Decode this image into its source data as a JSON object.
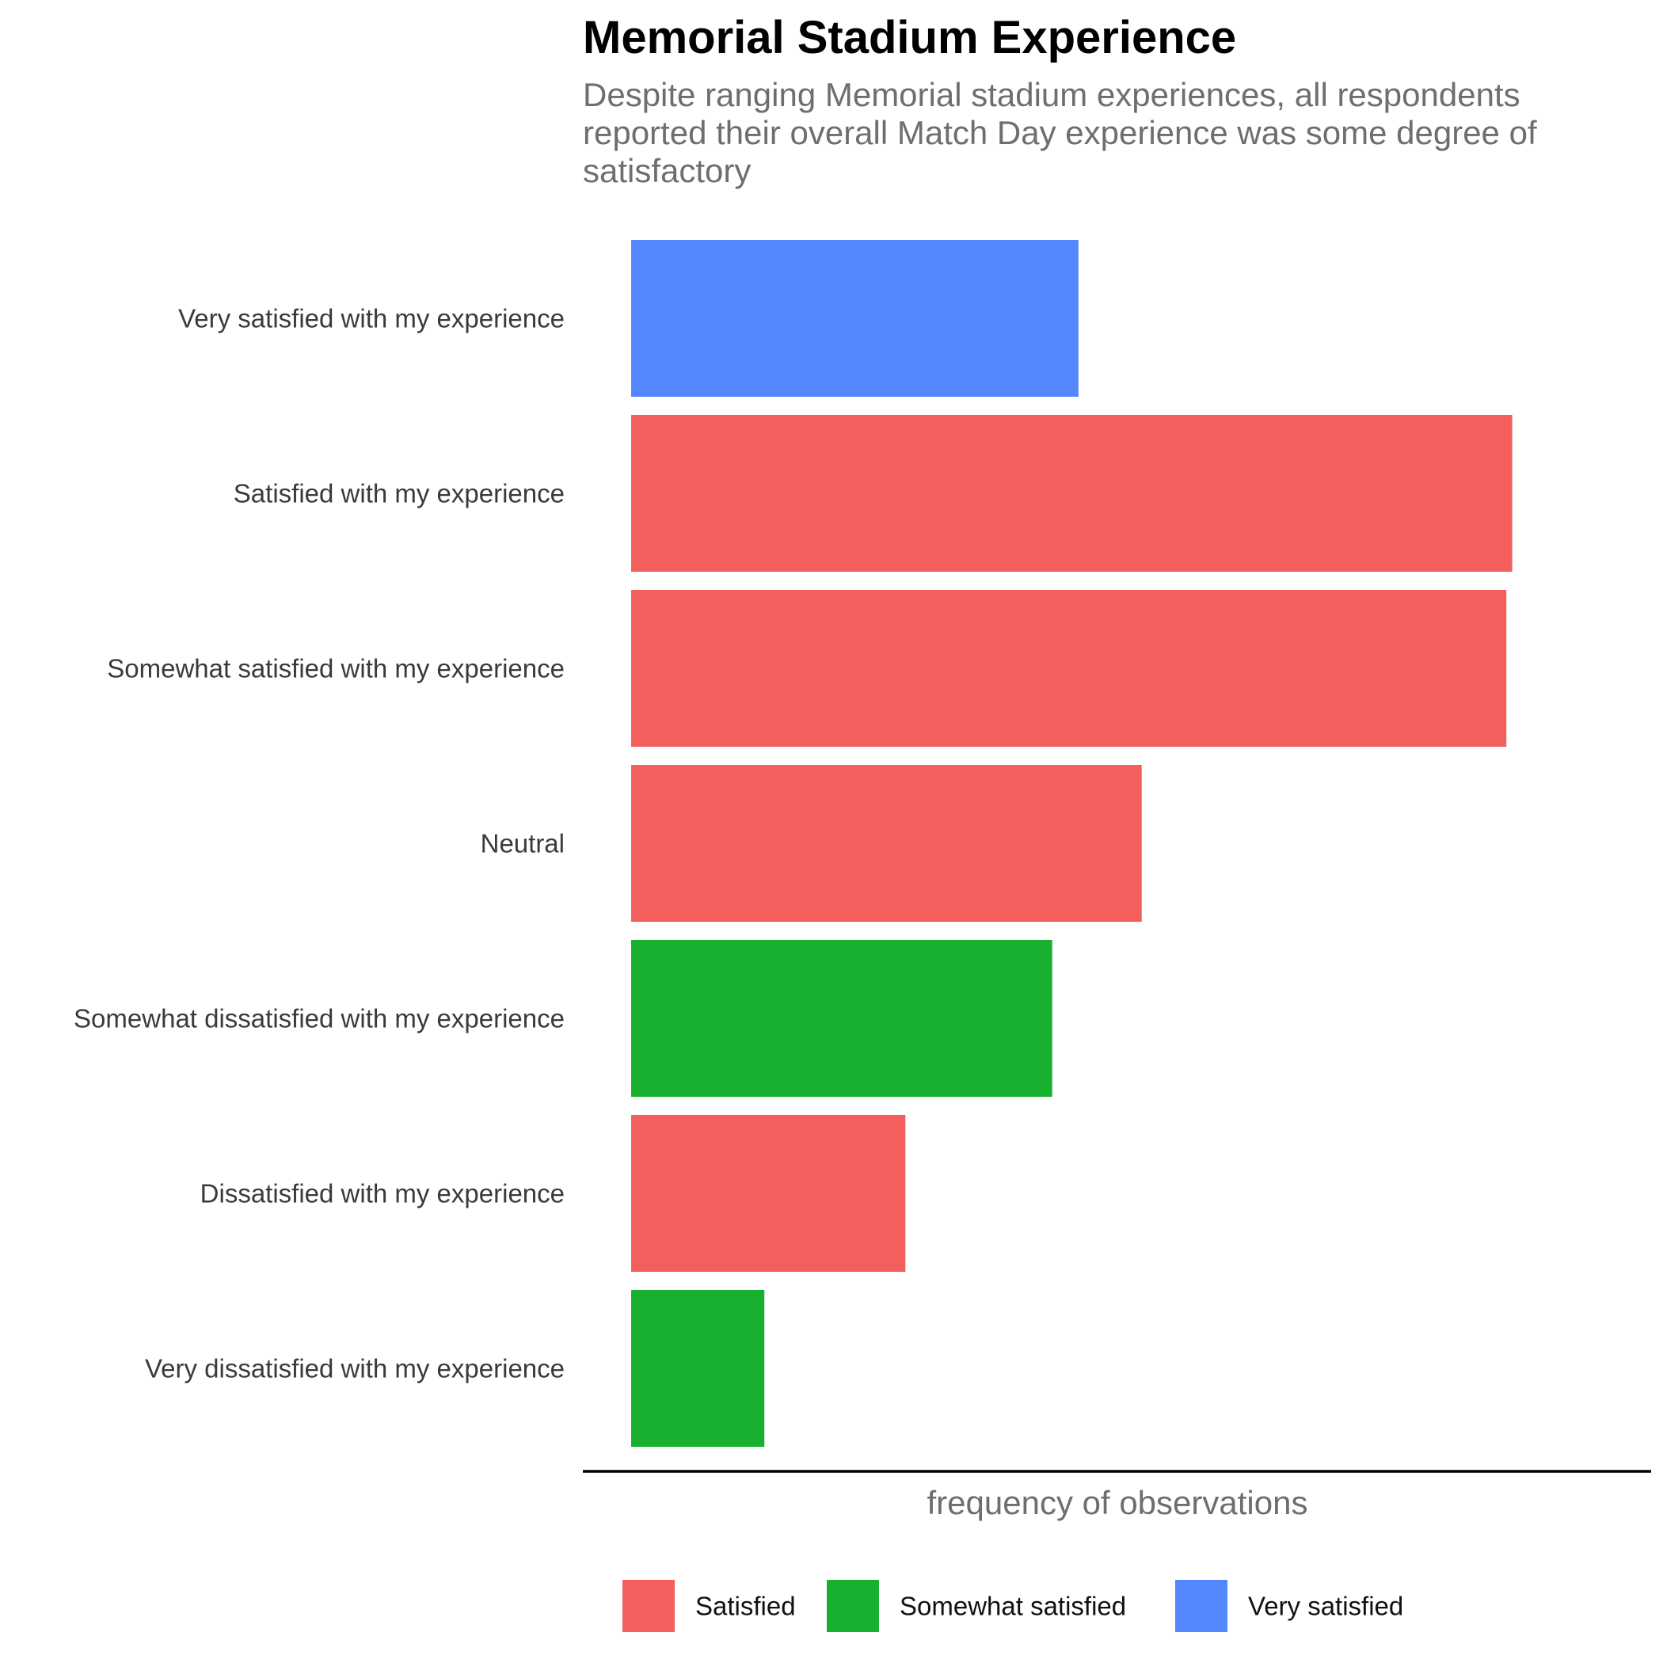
{
  "chart_data": {
    "type": "bar",
    "orientation": "horizontal",
    "title": "Memorial Stadium Experience",
    "subtitle": "Despite ranging Memorial stadium experiences, all respondents reported their overall Match Day experience was some degree of satisfactory",
    "xlabel": "frequency of observations",
    "ylabel": "",
    "x_tick_labels_shown": false,
    "grid": false,
    "legend_position": "bottom",
    "categories": [
      "Very satisfied with my experience",
      "Satisfied with my experience",
      "Somewhat satisfied with my experience",
      "Neutral",
      "Somewhat dissatisfied with my experience",
      "Dissatisfied with my experience",
      "Very dissatisfied with my experience"
    ],
    "values": [
      46,
      90.6,
      90,
      52.5,
      43.3,
      28.2,
      13.7
    ],
    "xlim": [
      0,
      100
    ],
    "bar_groups": [
      "Very satisfied",
      "Satisfied",
      "Satisfied",
      "Satisfied",
      "Somewhat satisfied",
      "Satisfied",
      "Somewhat satisfied"
    ],
    "legend": [
      {
        "name": "Satisfied",
        "color": "#f25f5c"
      },
      {
        "name": "Somewhat satisfied",
        "color": "#1ab02f"
      },
      {
        "name": "Very satisfied",
        "color": "#5287fe"
      }
    ]
  }
}
